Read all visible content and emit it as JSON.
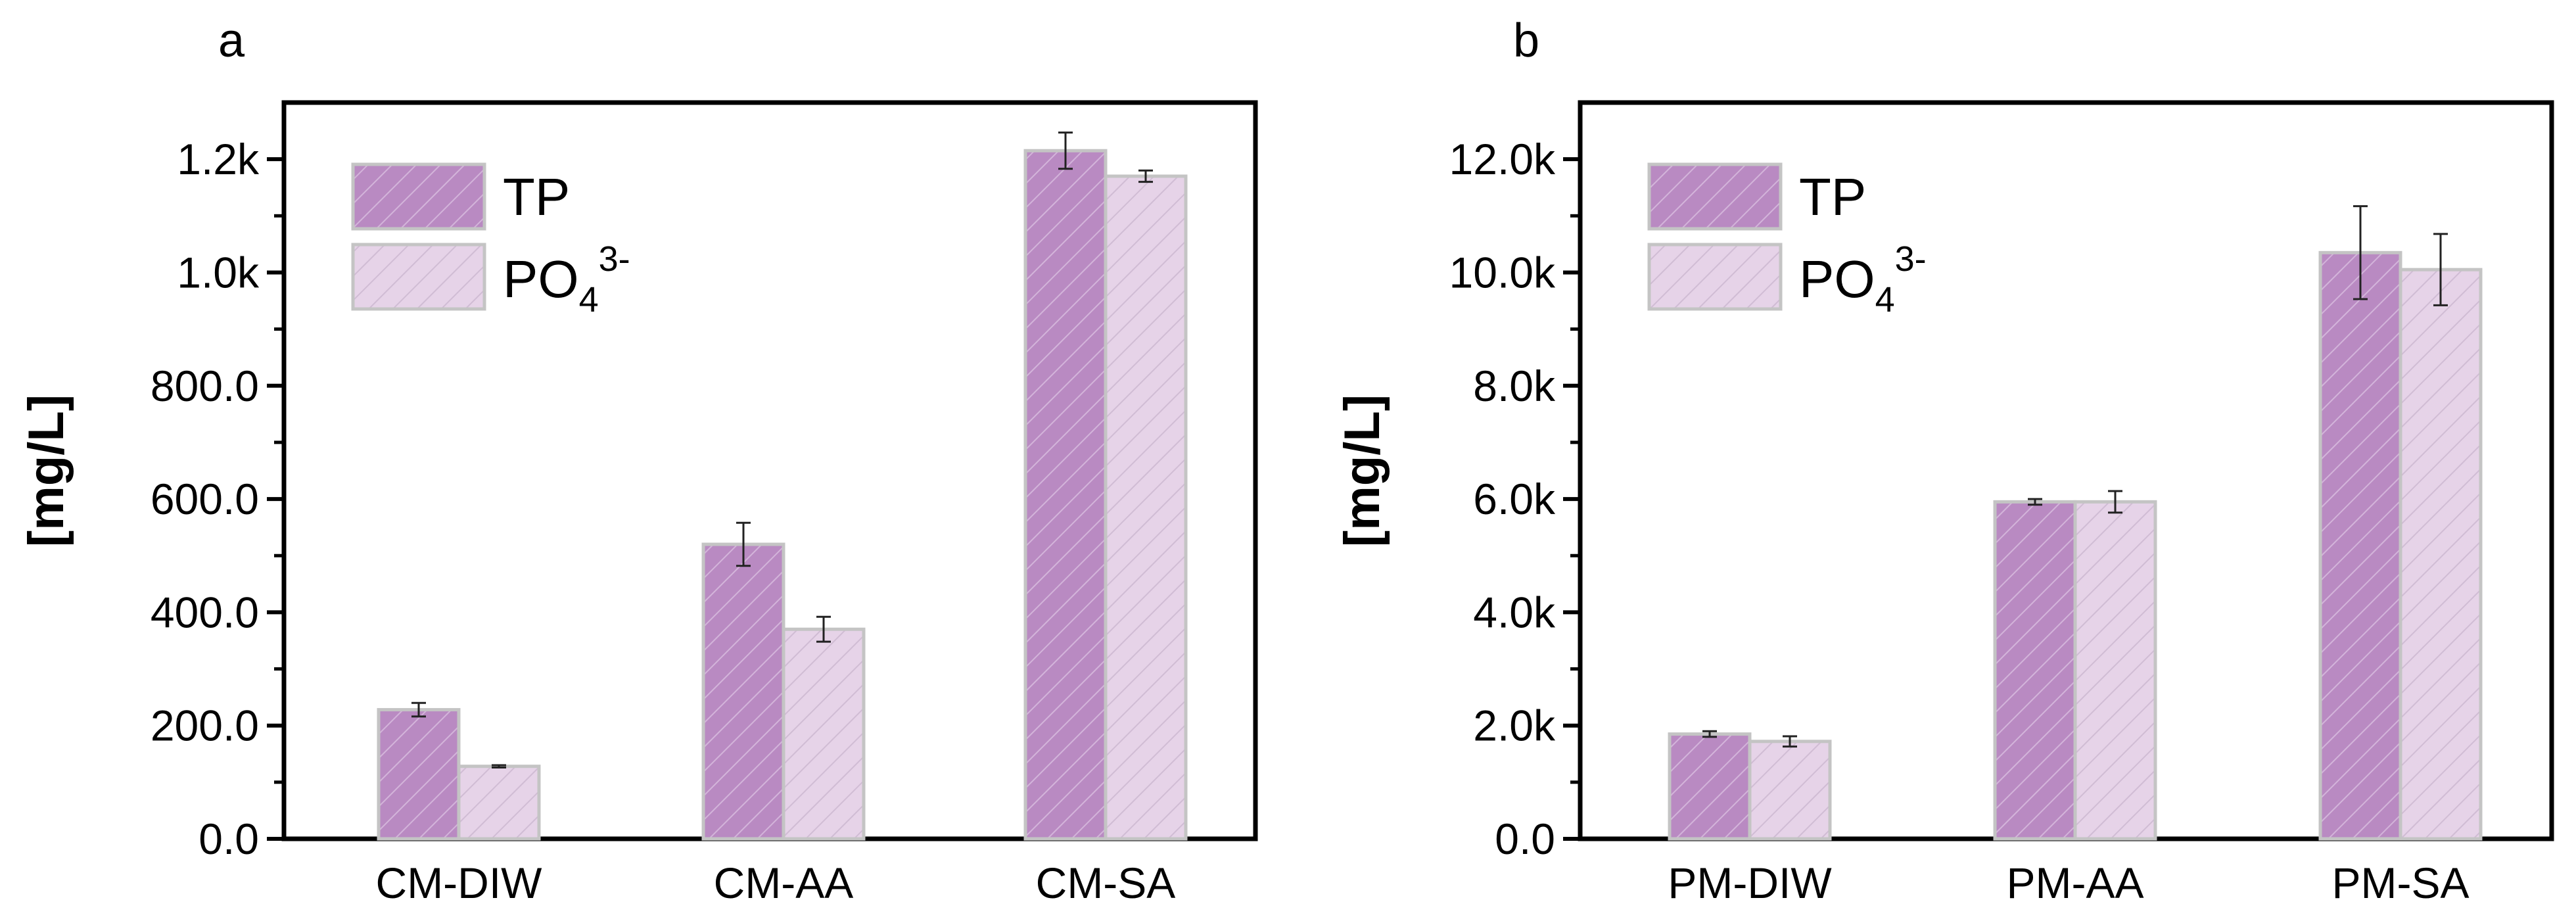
{
  "figure": {
    "panel_labels": [
      "a",
      "b"
    ]
  },
  "colors": {
    "series_tp_fill": "#b98ac2",
    "series_po4_fill": "#e6d3e8",
    "bar_stroke": "#c4c4c4",
    "axis": "#000000"
  },
  "chart_data": [
    {
      "type": "bar",
      "panel": "a",
      "title": "",
      "xlabel": "",
      "ylabel": "[mg/L]",
      "ylim": [
        0,
        1300
      ],
      "yticks": [
        0,
        200,
        400,
        600,
        800,
        1000,
        1200
      ],
      "ytick_labels": [
        "0.0",
        "200.0",
        "400.0",
        "600.0",
        "800.0",
        "1.0k",
        "1.2k"
      ],
      "categories": [
        "CM-DIW",
        "CM-AA",
        "CM-SA"
      ],
      "legend": {
        "position": "top-left",
        "entries": [
          "TP",
          "PO43-"
        ]
      },
      "legend_text": {
        "tp": "TP",
        "po4_main": "PO",
        "po4_sub": "4",
        "po4_sup": "3-"
      },
      "series": [
        {
          "name": "TP",
          "values": [
            228,
            520,
            1215
          ],
          "errors": [
            12,
            38,
            32
          ]
        },
        {
          "name": "PO43-",
          "values": [
            128,
            370,
            1170
          ],
          "errors": [
            2,
            22,
            10
          ]
        }
      ]
    },
    {
      "type": "bar",
      "panel": "b",
      "title": "",
      "xlabel": "",
      "ylabel": "[mg/L]",
      "ylim": [
        0,
        13000
      ],
      "yticks": [
        0,
        2000,
        4000,
        6000,
        8000,
        10000,
        12000
      ],
      "ytick_labels": [
        "0.0",
        "2.0k",
        "4.0k",
        "6.0k",
        "8.0k",
        "10.0k",
        "12.0k"
      ],
      "categories": [
        "PM-DIW",
        "PM-AA",
        "PM-SA"
      ],
      "legend": {
        "position": "top-left",
        "entries": [
          "TP",
          "PO43-"
        ]
      },
      "legend_text": {
        "tp": "TP",
        "po4_main": "PO",
        "po4_sub": "4",
        "po4_sup": "3-"
      },
      "series": [
        {
          "name": "TP",
          "values": [
            1850,
            5950,
            10350
          ],
          "errors": [
            50,
            50,
            820
          ]
        },
        {
          "name": "PO43-",
          "values": [
            1720,
            5950,
            10050
          ],
          "errors": [
            90,
            190,
            630
          ]
        }
      ]
    }
  ]
}
